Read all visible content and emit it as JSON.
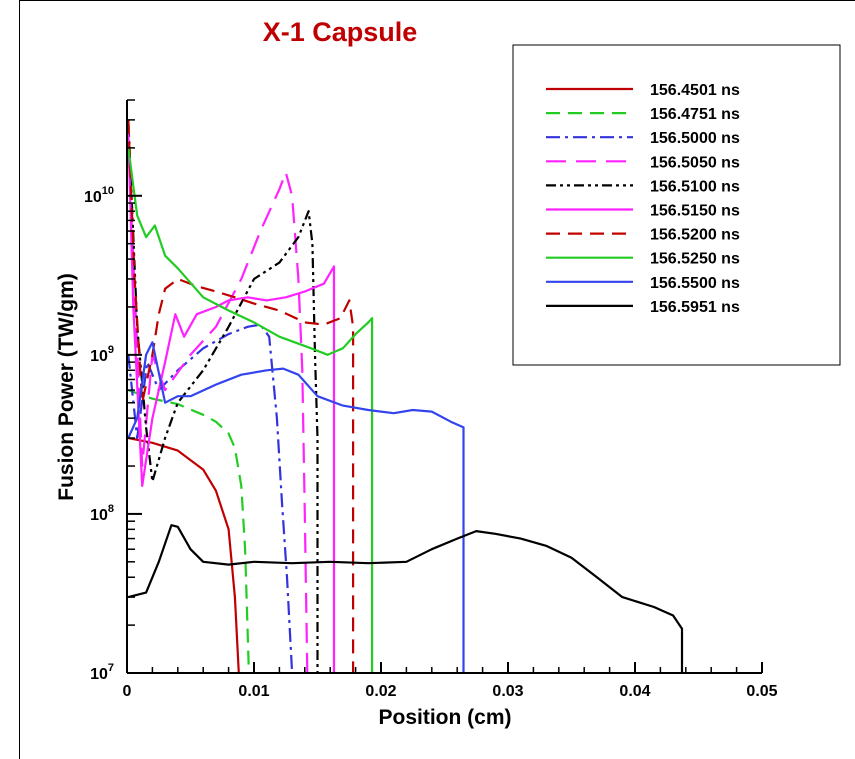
{
  "chart_data": {
    "type": "line",
    "title": "X-1 Capsule",
    "xlabel": "Position (cm)",
    "ylabel": "Fusion Power (TW/gm)",
    "xlim": [
      0,
      0.05
    ],
    "ylim": [
      10000000,
      40000000000
    ],
    "yscale": "log",
    "grid": false,
    "legend_position": "top-right",
    "x_ticks": [
      {
        "value": 0,
        "label": "0"
      },
      {
        "value": 0.01,
        "label": "0.01"
      },
      {
        "value": 0.02,
        "label": "0.02"
      },
      {
        "value": 0.03,
        "label": "0.03"
      },
      {
        "value": 0.04,
        "label": "0.04"
      },
      {
        "value": 0.05,
        "label": "0.05"
      }
    ],
    "y_ticks": [
      {
        "value": 10000000,
        "base": "10",
        "exp": "7"
      },
      {
        "value": 100000000,
        "base": "10",
        "exp": "8"
      },
      {
        "value": 1000000000,
        "base": "10",
        "exp": "9"
      },
      {
        "value": 10000000000,
        "base": "10",
        "exp": "10"
      }
    ],
    "series": [
      {
        "name": "156.4501 ns",
        "color": "#c00000",
        "dash": "solid",
        "points": [
          [
            0.0001,
            300000000.0
          ],
          [
            0.002,
            280000000.0
          ],
          [
            0.004,
            250000000.0
          ],
          [
            0.006,
            190000000.0
          ],
          [
            0.007,
            140000000.0
          ],
          [
            0.008,
            80000000.0
          ],
          [
            0.0085,
            30000000.0
          ],
          [
            0.0088,
            10000000.0
          ]
        ]
      },
      {
        "name": "156.4751 ns",
        "color": "#22cc22",
        "dash": "14,8",
        "points": [
          [
            0.0001,
            600000000.0
          ],
          [
            0.002,
            530000000.0
          ],
          [
            0.004,
            490000000.0
          ],
          [
            0.006,
            420000000.0
          ],
          [
            0.007,
            380000000.0
          ],
          [
            0.008,
            320000000.0
          ],
          [
            0.0085,
            260000000.0
          ],
          [
            0.009,
            150000000.0
          ],
          [
            0.0093,
            60000000.0
          ],
          [
            0.0096,
            10000000.0
          ]
        ]
      },
      {
        "name": "156.5000 ns",
        "color": "#3333dd",
        "dash": "14,5,3,5",
        "points": [
          [
            0.0001,
            1000000000.0
          ],
          [
            0.0008,
            300000000.0
          ],
          [
            0.0016,
            900000000.0
          ],
          [
            0.0025,
            600000000.0
          ],
          [
            0.004,
            800000000.0
          ],
          [
            0.006,
            1100000000.0
          ],
          [
            0.008,
            1350000000.0
          ],
          [
            0.0095,
            1500000000.0
          ],
          [
            0.0105,
            1550000000.0
          ],
          [
            0.0112,
            1300000000.0
          ],
          [
            0.0118,
            400000000.0
          ],
          [
            0.0122,
            120000000.0
          ],
          [
            0.0126,
            40000000.0
          ],
          [
            0.013,
            10000000.0
          ]
        ]
      },
      {
        "name": "156.5050 ns",
        "color": "#ff22ff",
        "dash": "20,10",
        "points": [
          [
            0.0001,
            20000000000.0
          ],
          [
            0.0005,
            4000000000.0
          ],
          [
            0.0012,
            200000000.0
          ],
          [
            0.002,
            1000000000.0
          ],
          [
            0.003,
            600000000.0
          ],
          [
            0.005,
            1000000000.0
          ],
          [
            0.007,
            1500000000.0
          ],
          [
            0.009,
            3000000000.0
          ],
          [
            0.0105,
            6000000000.0
          ],
          [
            0.012,
            11000000000.0
          ],
          [
            0.0125,
            14000000000.0
          ],
          [
            0.013,
            10000000000.0
          ],
          [
            0.0135,
            3000000000.0
          ],
          [
            0.0138,
            800000000.0
          ],
          [
            0.014,
            100000000.0
          ],
          [
            0.0142,
            10000000.0
          ]
        ]
      },
      {
        "name": "156.5100 ns",
        "color": "#000000",
        "dash": "10,4,3,4,3,4",
        "points": [
          [
            0.0001,
            30000000000.0
          ],
          [
            0.0008,
            1500000000.0
          ],
          [
            0.0015,
            350000000.0
          ],
          [
            0.002,
            160000000.0
          ],
          [
            0.003,
            300000000.0
          ],
          [
            0.004,
            500000000.0
          ],
          [
            0.006,
            800000000.0
          ],
          [
            0.008,
            1500000000.0
          ],
          [
            0.01,
            3000000000.0
          ],
          [
            0.012,
            3800000000.0
          ],
          [
            0.0135,
            5500000000.0
          ],
          [
            0.0143,
            8000000000.0
          ],
          [
            0.0146,
            5000000000.0
          ],
          [
            0.0148,
            1000000000.0
          ],
          [
            0.015,
            300000000.0
          ],
          [
            0.015,
            10000000.0
          ]
        ]
      },
      {
        "name": "156.5150 ns",
        "color": "#ff22ff",
        "dash": "solid",
        "points": [
          [
            0.0001,
            25000000000.0
          ],
          [
            0.0005,
            2000000000.0
          ],
          [
            0.0012,
            150000000.0
          ],
          [
            0.002,
            400000000.0
          ],
          [
            0.003,
            900000000.0
          ],
          [
            0.0038,
            1800000000.0
          ],
          [
            0.0045,
            1300000000.0
          ],
          [
            0.0055,
            1800000000.0
          ],
          [
            0.007,
            2000000000.0
          ],
          [
            0.008,
            2200000000.0
          ],
          [
            0.0095,
            2300000000.0
          ],
          [
            0.011,
            2200000000.0
          ],
          [
            0.0125,
            2300000000.0
          ],
          [
            0.014,
            2500000000.0
          ],
          [
            0.0155,
            2800000000.0
          ],
          [
            0.0163,
            3600000000.0
          ],
          [
            0.0163,
            10000000.0
          ]
        ]
      },
      {
        "name": "156.5200 ns",
        "color": "#c00000",
        "dash": "14,8",
        "points": [
          [
            0.0001,
            30000000000.0
          ],
          [
            0.0006,
            3000000000.0
          ],
          [
            0.0012,
            500000000.0
          ],
          [
            0.002,
            1000000000.0
          ],
          [
            0.0025,
            1800000000.0
          ],
          [
            0.003,
            2600000000.0
          ],
          [
            0.004,
            3000000000.0
          ],
          [
            0.0055,
            2700000000.0
          ],
          [
            0.007,
            2500000000.0
          ],
          [
            0.0085,
            2300000000.0
          ],
          [
            0.01,
            2100000000.0
          ],
          [
            0.012,
            1900000000.0
          ],
          [
            0.014,
            1600000000.0
          ],
          [
            0.0155,
            1550000000.0
          ],
          [
            0.0168,
            1700000000.0
          ],
          [
            0.0175,
            2200000000.0
          ],
          [
            0.0178,
            1500000000.0
          ],
          [
            0.0178,
            10000000.0
          ]
        ]
      },
      {
        "name": "156.5250 ns",
        "color": "#22cc22",
        "dash": "solid",
        "points": [
          [
            0.0001,
            20000000000.0
          ],
          [
            0.0008,
            7500000000.0
          ],
          [
            0.0015,
            5500000000.0
          ],
          [
            0.0022,
            6500000000.0
          ],
          [
            0.003,
            4200000000.0
          ],
          [
            0.004,
            3500000000.0
          ],
          [
            0.006,
            2300000000.0
          ],
          [
            0.008,
            1900000000.0
          ],
          [
            0.01,
            1600000000.0
          ],
          [
            0.012,
            1300000000.0
          ],
          [
            0.0145,
            1100000000.0
          ],
          [
            0.0158,
            1000000000.0
          ],
          [
            0.017,
            1100000000.0
          ],
          [
            0.018,
            1350000000.0
          ],
          [
            0.019,
            1600000000.0
          ],
          [
            0.0193,
            1700000000.0
          ],
          [
            0.0193,
            10000000.0
          ]
        ]
      },
      {
        "name": "156.5500 ns",
        "color": "#3344ee",
        "dash": "solid",
        "points": [
          [
            0.0001,
            300000000.0
          ],
          [
            0.0008,
            400000000.0
          ],
          [
            0.0015,
            1000000000.0
          ],
          [
            0.002,
            1200000000.0
          ],
          [
            0.003,
            500000000.0
          ],
          [
            0.004,
            550000000.0
          ],
          [
            0.005,
            550000000.0
          ],
          [
            0.007,
            650000000.0
          ],
          [
            0.009,
            750000000.0
          ],
          [
            0.011,
            800000000.0
          ],
          [
            0.0123,
            820000000.0
          ],
          [
            0.0135,
            750000000.0
          ],
          [
            0.015,
            550000000.0
          ],
          [
            0.017,
            480000000.0
          ],
          [
            0.019,
            450000000.0
          ],
          [
            0.021,
            430000000.0
          ],
          [
            0.0225,
            450000000.0
          ],
          [
            0.024,
            440000000.0
          ],
          [
            0.0255,
            380000000.0
          ],
          [
            0.0265,
            350000000.0
          ],
          [
            0.0265,
            10000000.0
          ]
        ]
      },
      {
        "name": "156.5951 ns",
        "color": "#000000",
        "dash": "solid",
        "points": [
          [
            0.0001,
            30000000.0
          ],
          [
            0.0015,
            32000000.0
          ],
          [
            0.0025,
            50000000.0
          ],
          [
            0.0035,
            85000000.0
          ],
          [
            0.004,
            83000000.0
          ],
          [
            0.005,
            60000000.0
          ],
          [
            0.006,
            50000000.0
          ],
          [
            0.008,
            48000000.0
          ],
          [
            0.01,
            50000000.0
          ],
          [
            0.013,
            49000000.0
          ],
          [
            0.016,
            50000000.0
          ],
          [
            0.019,
            49000000.0
          ],
          [
            0.022,
            50000000.0
          ],
          [
            0.024,
            60000000.0
          ],
          [
            0.026,
            70000000.0
          ],
          [
            0.0275,
            78000000.0
          ],
          [
            0.029,
            75000000.0
          ],
          [
            0.031,
            70000000.0
          ],
          [
            0.033,
            63000000.0
          ],
          [
            0.035,
            53000000.0
          ],
          [
            0.037,
            40000000.0
          ],
          [
            0.039,
            30000000.0
          ],
          [
            0.0415,
            26000000.0
          ],
          [
            0.043,
            23000000.0
          ],
          [
            0.0437,
            19000000.0
          ],
          [
            0.0437,
            10000000.0
          ]
        ]
      }
    ]
  }
}
